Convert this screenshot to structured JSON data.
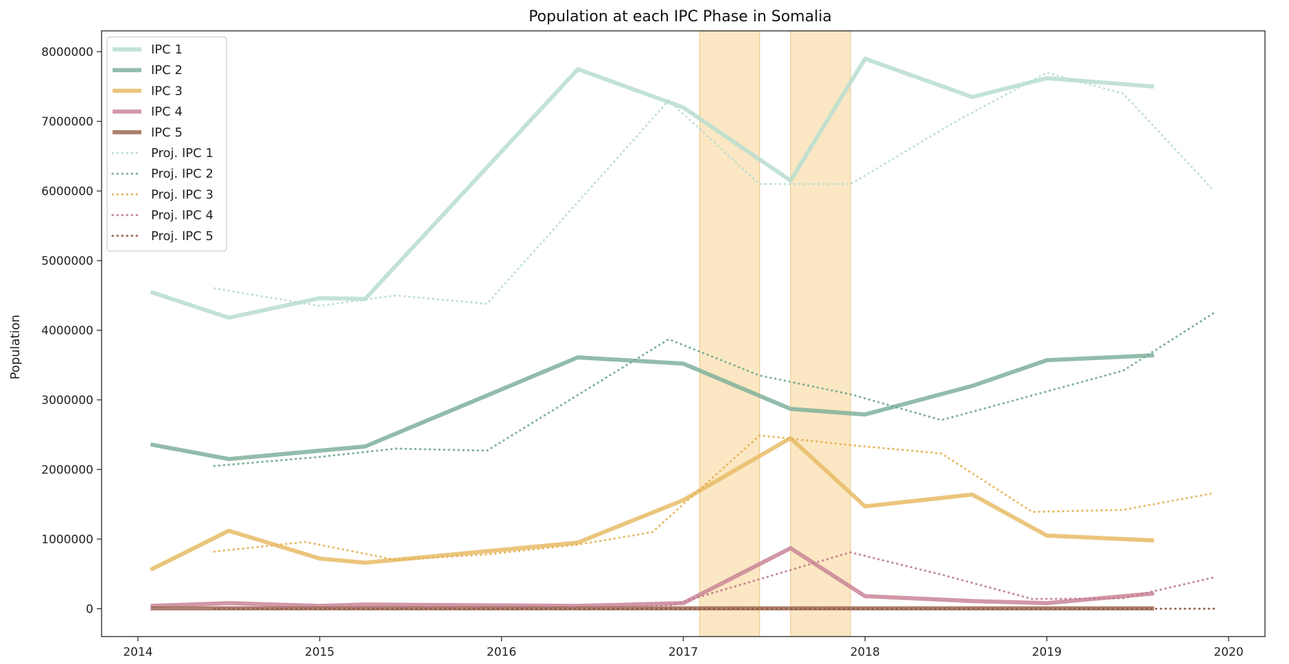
{
  "chart_data": {
    "type": "line",
    "title": "Population at each IPC Phase in Somalia",
    "xlabel": "",
    "ylabel": "Population",
    "xlim": [
      2013.8,
      2020.2
    ],
    "ylim": [
      -400000,
      8300000
    ],
    "x_ticks": [
      2014,
      2015,
      2016,
      2017,
      2018,
      2019,
      2020
    ],
    "y_ticks": [
      0,
      1000000,
      2000000,
      3000000,
      4000000,
      5000000,
      6000000,
      7000000,
      8000000
    ],
    "grid": false,
    "legend_position": "upper-left",
    "shaded_periods": [
      {
        "start": 2017.09,
        "end": 2017.42,
        "color": "#f7c97a"
      },
      {
        "start": 2017.59,
        "end": 2017.92,
        "color": "#f7c97a"
      }
    ],
    "series": [
      {
        "name": "IPC 1",
        "style": "solid",
        "color": "#b8ddd0",
        "points": [
          [
            2014.07,
            4550000
          ],
          [
            2014.5,
            4180000
          ],
          [
            2015.0,
            4460000
          ],
          [
            2015.25,
            4450000
          ],
          [
            2016.42,
            7750000
          ],
          [
            2017.0,
            7200000
          ],
          [
            2017.59,
            6150000
          ],
          [
            2018.0,
            7900000
          ],
          [
            2018.59,
            7350000
          ],
          [
            2019.0,
            7620000
          ],
          [
            2019.59,
            7500000
          ]
        ]
      },
      {
        "name": "IPC 2",
        "style": "solid",
        "color": "#7fb09b",
        "points": [
          [
            2014.07,
            2360000
          ],
          [
            2014.5,
            2150000
          ],
          [
            2015.0,
            2270000
          ],
          [
            2015.25,
            2330000
          ],
          [
            2016.42,
            3610000
          ],
          [
            2017.0,
            3520000
          ],
          [
            2017.59,
            2870000
          ],
          [
            2018.0,
            2790000
          ],
          [
            2018.59,
            3200000
          ],
          [
            2019.0,
            3570000
          ],
          [
            2019.59,
            3640000
          ]
        ]
      },
      {
        "name": "IPC 3",
        "style": "solid",
        "color": "#e8bb66",
        "points": [
          [
            2014.07,
            560000
          ],
          [
            2014.5,
            1120000
          ],
          [
            2015.0,
            720000
          ],
          [
            2015.25,
            660000
          ],
          [
            2016.42,
            950000
          ],
          [
            2017.0,
            1560000
          ],
          [
            2017.59,
            2450000
          ],
          [
            2018.0,
            1470000
          ],
          [
            2018.59,
            1640000
          ],
          [
            2019.0,
            1050000
          ],
          [
            2019.59,
            980000
          ]
        ]
      },
      {
        "name": "IPC 4",
        "style": "solid",
        "color": "#c98597",
        "points": [
          [
            2014.07,
            40000
          ],
          [
            2014.5,
            80000
          ],
          [
            2015.0,
            40000
          ],
          [
            2015.25,
            60000
          ],
          [
            2016.42,
            40000
          ],
          [
            2017.0,
            80000
          ],
          [
            2017.59,
            870000
          ],
          [
            2018.0,
            180000
          ],
          [
            2018.59,
            110000
          ],
          [
            2019.0,
            80000
          ],
          [
            2019.59,
            220000
          ]
        ]
      },
      {
        "name": "IPC 5",
        "style": "solid",
        "color": "#9e6a55",
        "points": [
          [
            2014.07,
            5000
          ],
          [
            2014.5,
            5000
          ],
          [
            2015.0,
            5000
          ],
          [
            2015.25,
            5000
          ],
          [
            2016.42,
            5000
          ],
          [
            2017.0,
            5000
          ],
          [
            2017.59,
            5000
          ],
          [
            2018.0,
            5000
          ],
          [
            2018.59,
            5000
          ],
          [
            2019.0,
            5000
          ],
          [
            2019.59,
            5000
          ]
        ]
      },
      {
        "name": "Proj. IPC 1",
        "style": "dotted",
        "color": "#b8ddd0",
        "points": [
          [
            2014.42,
            4600000
          ],
          [
            2015.0,
            4350000
          ],
          [
            2015.42,
            4500000
          ],
          [
            2015.92,
            4380000
          ],
          [
            2016.92,
            7300000
          ],
          [
            2017.42,
            6100000
          ],
          [
            2017.92,
            6100000
          ],
          [
            2018.5,
            7000000
          ],
          [
            2019.0,
            7700000
          ],
          [
            2019.42,
            7400000
          ],
          [
            2019.92,
            6000000
          ]
        ]
      },
      {
        "name": "Proj. IPC 2",
        "style": "dotted",
        "color": "#6fa88f",
        "points": [
          [
            2014.42,
            2050000
          ],
          [
            2015.0,
            2180000
          ],
          [
            2015.42,
            2300000
          ],
          [
            2015.92,
            2270000
          ],
          [
            2016.92,
            3870000
          ],
          [
            2017.42,
            3350000
          ],
          [
            2017.92,
            3080000
          ],
          [
            2018.42,
            2710000
          ],
          [
            2019.0,
            3120000
          ],
          [
            2019.42,
            3420000
          ],
          [
            2019.92,
            4250000
          ]
        ]
      },
      {
        "name": "Proj. IPC 3",
        "style": "dotted",
        "color": "#e4b153",
        "points": [
          [
            2014.42,
            820000
          ],
          [
            2014.92,
            960000
          ],
          [
            2015.42,
            700000
          ],
          [
            2015.92,
            780000
          ],
          [
            2016.42,
            920000
          ],
          [
            2016.83,
            1100000
          ],
          [
            2017.42,
            2490000
          ],
          [
            2017.92,
            2350000
          ],
          [
            2018.42,
            2230000
          ],
          [
            2018.92,
            1390000
          ],
          [
            2019.42,
            1420000
          ],
          [
            2019.92,
            1660000
          ]
        ]
      },
      {
        "name": "Proj. IPC 4",
        "style": "dotted",
        "color": "#c07a8c",
        "points": [
          [
            2014.42,
            20000
          ],
          [
            2015.42,
            20000
          ],
          [
            2016.42,
            20000
          ],
          [
            2016.92,
            40000
          ],
          [
            2017.92,
            810000
          ],
          [
            2018.42,
            490000
          ],
          [
            2018.92,
            140000
          ],
          [
            2019.42,
            150000
          ],
          [
            2019.92,
            450000
          ]
        ]
      },
      {
        "name": "Proj. IPC 5",
        "style": "dotted",
        "color": "#8f5845",
        "points": [
          [
            2014.42,
            0
          ],
          [
            2015.42,
            0
          ],
          [
            2016.42,
            0
          ],
          [
            2017.42,
            0
          ],
          [
            2017.92,
            0
          ],
          [
            2018.42,
            0
          ],
          [
            2018.92,
            0
          ],
          [
            2019.42,
            0
          ],
          [
            2019.92,
            0
          ]
        ]
      }
    ]
  }
}
